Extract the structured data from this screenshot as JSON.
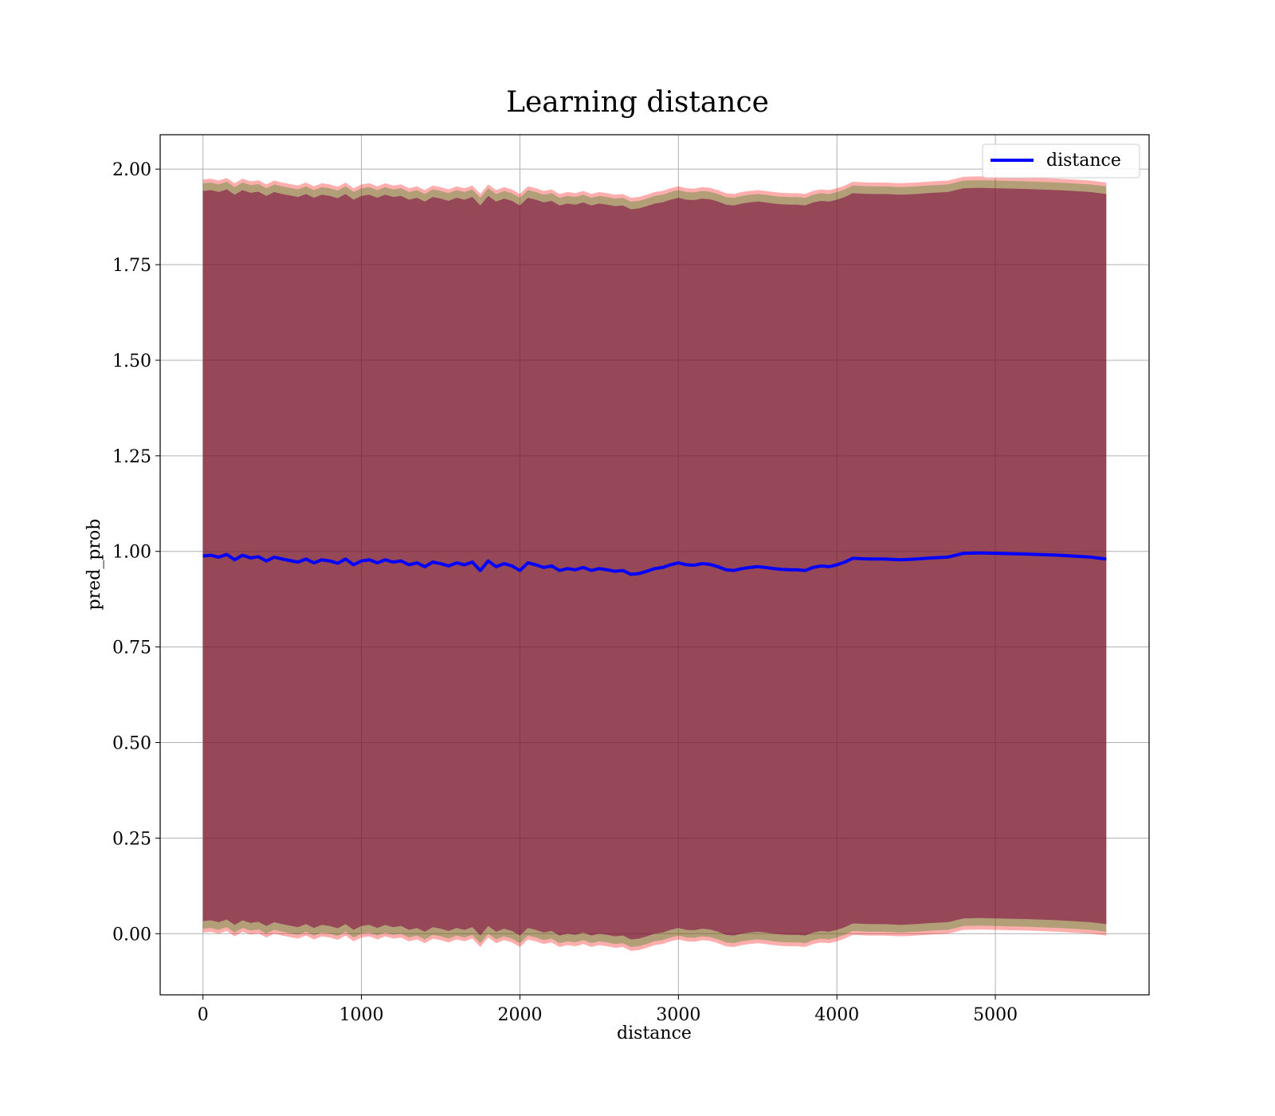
{
  "chart_data": {
    "type": "line",
    "title": "Learning distance",
    "xlabel": "distance",
    "ylabel": "pred_prob",
    "xlim": [
      -270,
      5970
    ],
    "ylim": [
      -0.16,
      2.09
    ],
    "xticks": [
      0,
      1000,
      2000,
      3000,
      4000,
      5000
    ],
    "xtick_labels": [
      "0",
      "1000",
      "2000",
      "3000",
      "4000",
      "5000"
    ],
    "yticks": [
      0.0,
      0.25,
      0.5,
      0.75,
      1.0,
      1.25,
      1.5,
      1.75,
      2.0
    ],
    "ytick_labels": [
      "0.00",
      "0.25",
      "0.50",
      "0.75",
      "1.00",
      "1.25",
      "1.50",
      "1.75",
      "2.00"
    ],
    "grid": true,
    "legend": {
      "position": "top-right",
      "entries": [
        "distance"
      ]
    },
    "colors": {
      "line": "#0000ff",
      "band_outer": "#ff0000",
      "band_inner": "#008000",
      "band_core": "#800040"
    },
    "series": [
      {
        "name": "distance",
        "x": [
          0,
          50,
          100,
          150,
          200,
          250,
          300,
          350,
          400,
          450,
          500,
          550,
          600,
          650,
          700,
          750,
          800,
          850,
          900,
          950,
          1000,
          1050,
          1100,
          1150,
          1200,
          1250,
          1300,
          1350,
          1400,
          1450,
          1500,
          1550,
          1600,
          1650,
          1700,
          1750,
          1800,
          1850,
          1900,
          1950,
          2000,
          2050,
          2100,
          2150,
          2200,
          2250,
          2300,
          2350,
          2400,
          2450,
          2500,
          2550,
          2600,
          2650,
          2700,
          2750,
          2800,
          2850,
          2900,
          2950,
          3000,
          3050,
          3100,
          3150,
          3200,
          3250,
          3300,
          3350,
          3400,
          3450,
          3500,
          3550,
          3600,
          3650,
          3700,
          3750,
          3800,
          3850,
          3900,
          3950,
          4000,
          4050,
          4100,
          4200,
          4300,
          4400,
          4500,
          4600,
          4700,
          4800,
          4900,
          5000,
          5200,
          5400,
          5600,
          5700
        ],
        "y": [
          0.988,
          0.99,
          0.985,
          0.992,
          0.978,
          0.99,
          0.983,
          0.986,
          0.975,
          0.985,
          0.98,
          0.976,
          0.972,
          0.98,
          0.97,
          0.978,
          0.975,
          0.969,
          0.98,
          0.965,
          0.975,
          0.978,
          0.97,
          0.978,
          0.972,
          0.975,
          0.965,
          0.97,
          0.96,
          0.972,
          0.968,
          0.962,
          0.97,
          0.965,
          0.972,
          0.95,
          0.975,
          0.96,
          0.968,
          0.962,
          0.95,
          0.97,
          0.965,
          0.958,
          0.962,
          0.95,
          0.955,
          0.952,
          0.958,
          0.95,
          0.955,
          0.952,
          0.948,
          0.95,
          0.94,
          0.942,
          0.948,
          0.955,
          0.958,
          0.965,
          0.97,
          0.965,
          0.964,
          0.968,
          0.966,
          0.96,
          0.952,
          0.95,
          0.955,
          0.958,
          0.96,
          0.958,
          0.955,
          0.953,
          0.952,
          0.952,
          0.95,
          0.958,
          0.962,
          0.96,
          0.965,
          0.972,
          0.982,
          0.98,
          0.98,
          0.978,
          0.98,
          0.983,
          0.985,
          0.995,
          0.996,
          0.995,
          0.993,
          0.99,
          0.985,
          0.98
        ],
        "band_outer_halfwidth": 0.985,
        "band_inner_halfwidth": 0.975,
        "band_core_halfwidth": 0.955
      }
    ]
  }
}
